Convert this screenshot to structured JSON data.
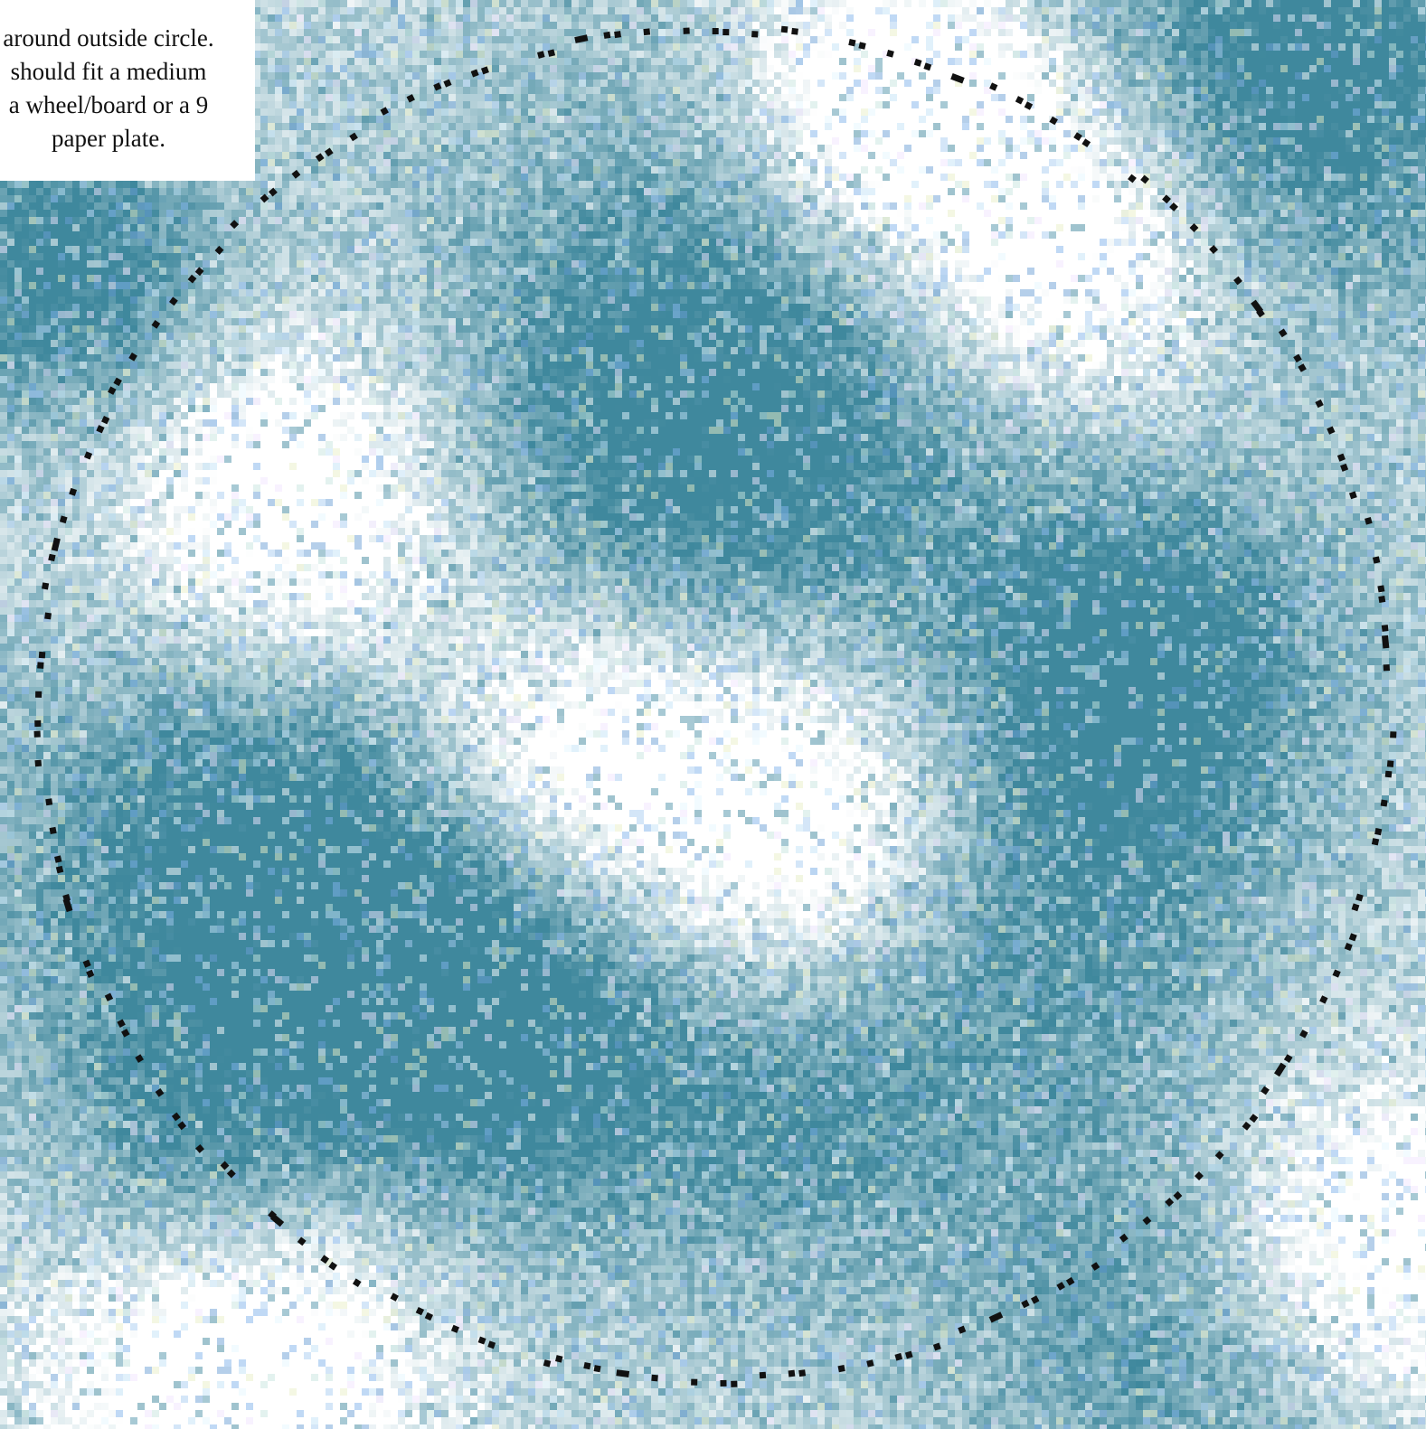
{
  "instruction_note": {
    "text": "around outside circle.\nshould fit a medium\na wheel/board or a 9\npaper plate."
  },
  "pattern": {
    "palette": [
      "#ffffff",
      "#e6f7ff",
      "#c3e3f7",
      "#a9cdf1",
      "#82b3ec",
      "#6b9fd6",
      "#4f93aa",
      "#3f889d",
      "#e9efc8",
      "#f2e6ff",
      "#c8e6e0"
    ],
    "dark": "#3f889d",
    "light": "#ffffff",
    "cut_line_color": "#111111"
  }
}
